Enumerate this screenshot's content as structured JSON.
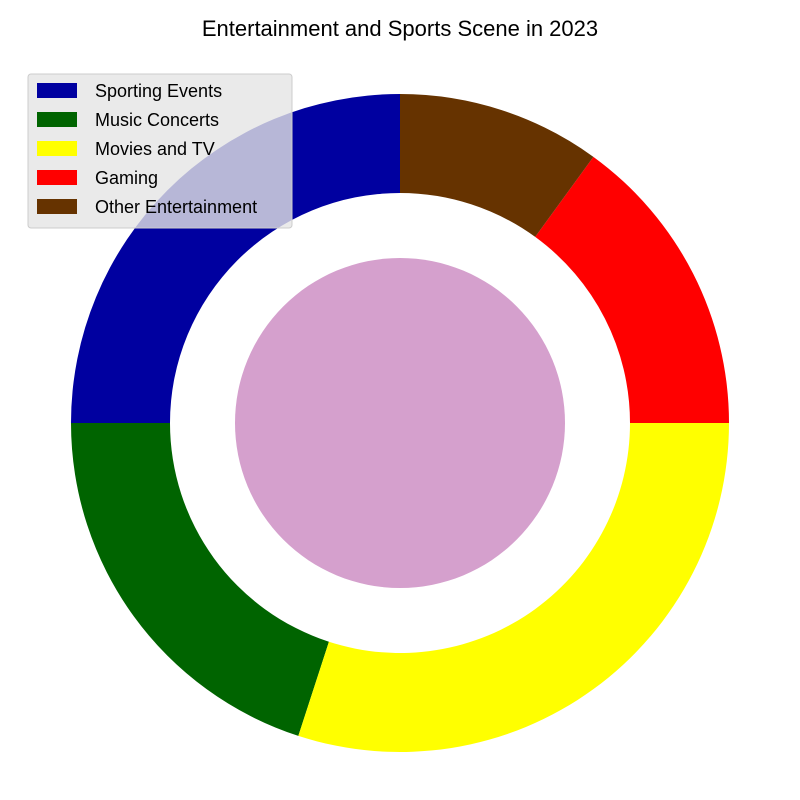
{
  "chart_data": {
    "type": "pie",
    "title": "Entertainment and Sports Scene in 2023",
    "legend_position": "top-left",
    "categories": [
      "Sporting Events",
      "Music Concerts",
      "Movies and TV",
      "Gaming",
      "Other Entertainment"
    ],
    "values": [
      25,
      20,
      30,
      15,
      10
    ],
    "colors": [
      "#0000a0",
      "#006400",
      "#ffff00",
      "#ff0000",
      "#663300"
    ],
    "start_angle_deg": 90,
    "direction": "counterclockwise",
    "center_circle_color": "#d5a0cd"
  }
}
